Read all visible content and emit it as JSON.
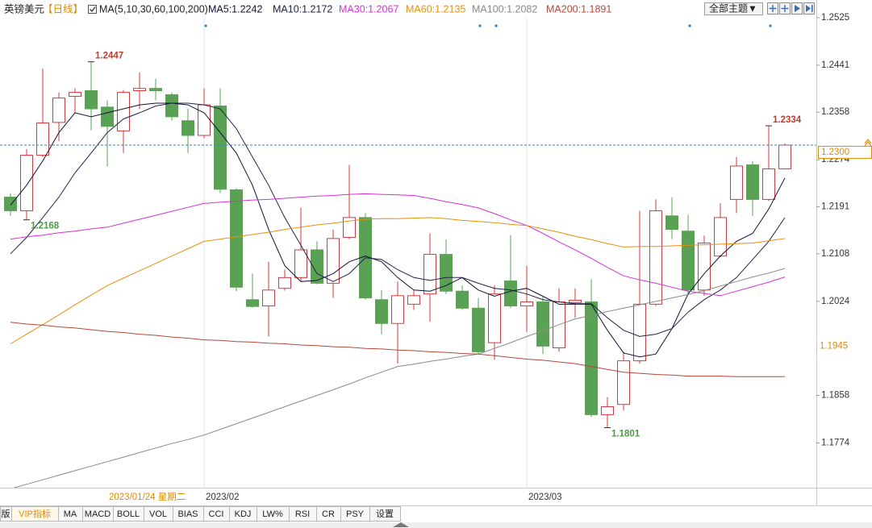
{
  "chart_data": {
    "type": "candlestick",
    "title": "英镑美元",
    "period": "【日线】",
    "indicator": "MA(5,10,30,60,100,200)",
    "categories": [
      null,
      null,
      null,
      null,
      null,
      null,
      null,
      null,
      null,
      null,
      null,
      null,
      "2023/02",
      null,
      null,
      null,
      null,
      null,
      null,
      null,
      null,
      null,
      null,
      null,
      null,
      null,
      null,
      null,
      null,
      null,
      null,
      null,
      "2023/03",
      null,
      null,
      null,
      null,
      null,
      null,
      null,
      null,
      null,
      null,
      null,
      null,
      null,
      null,
      null,
      null
    ],
    "open": [
      1.2208,
      1.2184,
      1.2282,
      1.234,
      1.2386,
      1.2396,
      1.2367,
      1.2325,
      1.2396,
      1.24,
      1.2389,
      1.2343,
      1.2317,
      1.2369,
      1.2221,
      1.2027,
      1.2016,
      1.2047,
      1.2066,
      1.2115,
      1.2056,
      1.2137,
      1.2172,
      1.2027,
      1.1985,
      1.2019,
      1.2037,
      1.2107,
      1.2042,
      1.2012,
      1.1951,
      1.206,
      1.2016,
      1.2023,
      1.1942,
      1.2022,
      1.2023,
      1.1824,
      1.1842,
      1.1919,
      1.2019,
      1.2175,
      1.2148,
      1.2044,
      1.2104,
      1.2204,
      1.2265,
      1.2204,
      1.2258
    ],
    "high": [
      1.2215,
      1.2293,
      1.2435,
      1.2393,
      1.24,
      1.2447,
      1.2379,
      1.2397,
      1.2428,
      1.2417,
      1.2393,
      1.2364,
      1.24,
      1.24,
      1.2224,
      1.2073,
      1.2094,
      1.208,
      1.2189,
      1.213,
      1.2151,
      1.2265,
      1.218,
      1.2044,
      1.2059,
      1.2044,
      1.2144,
      1.2133,
      1.2052,
      1.203,
      1.2052,
      1.2141,
      1.2087,
      1.2033,
      1.2047,
      1.2047,
      1.2063,
      1.1855,
      1.1935,
      1.2184,
      1.2204,
      1.2208,
      1.2177,
      1.214,
      1.2197,
      1.2279,
      1.2272,
      1.2334,
      1.2303
    ],
    "low": [
      1.2175,
      1.2168,
      1.2279,
      1.2307,
      1.2357,
      1.2326,
      1.2262,
      1.2286,
      1.2364,
      1.2379,
      1.2343,
      1.2286,
      1.2312,
      1.2215,
      1.2042,
      1.2013,
      1.1962,
      1.2043,
      1.2059,
      1.2054,
      1.203,
      1.2134,
      1.2027,
      1.1966,
      1.1914,
      1.2009,
      1.1988,
      1.2037,
      1.2009,
      1.1931,
      1.1921,
      1.2012,
      1.197,
      1.1931,
      1.1935,
      1.1995,
      1.182,
      1.1801,
      1.1831,
      1.1914,
      1.2016,
      1.2134,
      1.2037,
      1.2034,
      1.2102,
      1.218,
      1.2175,
      1.2201,
      1.2257
    ],
    "close": [
      1.2184,
      1.2282,
      1.2339,
      1.2383,
      1.2393,
      1.2364,
      1.2333,
      1.2393,
      1.24,
      1.2396,
      1.235,
      1.2317,
      1.2371,
      1.2222,
      1.2049,
      1.2015,
      1.2044,
      1.2066,
      1.2115,
      1.2056,
      1.2135,
      1.2172,
      1.203,
      1.1985,
      1.2034,
      1.2034,
      1.2107,
      1.2042,
      1.2012,
      1.1935,
      1.2037,
      1.2016,
      1.2023,
      1.1945,
      1.2023,
      1.2026,
      1.1824,
      1.1838,
      1.1919,
      1.2019,
      1.2184,
      1.2151,
      1.2044,
      1.2127,
      1.2172,
      1.2263,
      1.2204,
      1.2258,
      1.23
    ],
    "up_color": "#d9373b",
    "down_color": "#5aa253",
    "series": [
      {
        "name": "MA5:1.2242",
        "color": "#111133",
        "values": [
          1.2194,
          1.2229,
          1.2272,
          1.2322,
          1.2357,
          1.235,
          1.2357,
          1.2364,
          1.2371,
          1.2374,
          1.2374,
          1.2371,
          1.2357,
          1.2322,
          1.2286,
          1.2229,
          1.2151,
          1.2087,
          1.2059,
          1.2061,
          1.2073,
          1.2094,
          1.2104,
          1.2094,
          1.2066,
          1.2044,
          1.2042,
          1.2052,
          1.2066,
          1.2044,
          1.2033,
          1.2042,
          1.2047,
          1.2033,
          1.2019,
          1.2019,
          1.2019,
          1.1973,
          1.1933,
          1.1926,
          1.1931,
          1.1976,
          1.2037,
          1.2073,
          1.2104,
          1.213,
          1.2144,
          1.2187,
          1.2242
        ]
      },
      {
        "name": "MA10:1.2172",
        "color": "#22224a",
        "values": [
          1.2108,
          1.2137,
          1.2172,
          1.2208,
          1.2251,
          1.2286,
          1.2322,
          1.2346,
          1.2357,
          1.2369,
          1.2374,
          1.2374,
          1.2371,
          1.2364,
          1.2329,
          1.2279,
          1.2229,
          1.2172,
          1.2123,
          1.2073,
          1.2059,
          1.2073,
          1.2101,
          1.2098,
          1.208,
          1.2066,
          1.2061,
          1.2066,
          1.2066,
          1.2056,
          1.2047,
          1.2044,
          1.2037,
          1.2027,
          1.2023,
          1.202,
          1.202,
          1.1995,
          1.1973,
          1.1962,
          1.1966,
          1.1976,
          1.2005,
          1.2027,
          1.2044,
          1.2066,
          1.2098,
          1.213,
          1.2172
        ]
      },
      {
        "name": "MA30:1.2067",
        "color": "#d631d6",
        "values": [
          1.2134,
          1.2138,
          1.2141,
          1.2145,
          1.2148,
          1.2152,
          1.2155,
          1.2162,
          1.2169,
          1.2176,
          1.2183,
          1.219,
          1.2197,
          1.2199,
          1.2201,
          1.2203,
          1.2204,
          1.2206,
          1.2208,
          1.221,
          1.2211,
          1.2213,
          1.2214,
          1.2213,
          1.2212,
          1.2211,
          1.2206,
          1.22,
          1.2195,
          1.2189,
          1.2179,
          1.2168,
          1.2158,
          1.2144,
          1.2129,
          1.2115,
          1.21,
          1.2084,
          1.2069,
          1.2062,
          1.2056,
          1.2049,
          1.2042,
          1.2038,
          1.2034,
          1.2042,
          1.205,
          1.2058,
          1.2067
        ]
      },
      {
        "name": "MA60:1.2135",
        "color": "#e8900c",
        "values": [
          1.1949,
          1.1966,
          1.1983,
          1.2,
          1.2018,
          1.2035,
          1.2052,
          1.2065,
          1.2078,
          1.2091,
          1.2104,
          1.2117,
          1.213,
          1.2134,
          1.2138,
          1.2142,
          1.2146,
          1.2151,
          1.2155,
          1.2159,
          1.2162,
          1.2166,
          1.2169,
          1.217,
          1.217,
          1.2171,
          1.2172,
          1.217,
          1.2167,
          1.2165,
          1.2163,
          1.216,
          1.2158,
          1.2152,
          1.2146,
          1.2139,
          1.2133,
          1.2126,
          1.212,
          1.2121,
          1.2121,
          1.2122,
          1.2123,
          1.2124,
          1.2125,
          1.2126,
          1.2127,
          1.2131,
          1.2135
        ]
      },
      {
        "name": "MA100:1.2082",
        "color": "#8a8a8a",
        "values": [
          1.1693,
          1.1701,
          1.1709,
          1.1717,
          1.1725,
          1.1733,
          1.1741,
          1.1749,
          1.1757,
          1.1765,
          1.1773,
          1.178,
          1.1788,
          1.1798,
          1.1808,
          1.1818,
          1.1828,
          1.1838,
          1.1848,
          1.1858,
          1.1868,
          1.1878,
          1.1889,
          1.1899,
          1.1909,
          1.1913,
          1.1918,
          1.1922,
          1.1927,
          1.1931,
          1.1941,
          1.1951,
          1.1962,
          1.1972,
          1.1983,
          1.1993,
          1.1999,
          1.2006,
          1.2012,
          1.2018,
          1.2024,
          1.203,
          1.2036,
          1.2043,
          1.2051,
          1.2059,
          1.2067,
          1.2074,
          1.2082
        ]
      },
      {
        "name": "MA200:1.1891",
        "color": "#b5483a",
        "values": [
          1.1987,
          1.1984,
          1.1982,
          1.1979,
          1.1977,
          1.1974,
          1.1971,
          1.1969,
          1.1966,
          1.1964,
          1.1961,
          1.1959,
          1.1956,
          1.1955,
          1.1953,
          1.1952,
          1.195,
          1.1949,
          1.1947,
          1.1946,
          1.1944,
          1.1943,
          1.1941,
          1.194,
          1.1938,
          1.1937,
          1.1935,
          1.1934,
          1.1932,
          1.1931,
          1.1928,
          1.1925,
          1.1922,
          1.192,
          1.1917,
          1.1914,
          1.1909,
          1.1904,
          1.1899,
          1.1897,
          1.1895,
          1.1894,
          1.1892,
          1.1892,
          1.1892,
          1.1891,
          1.1891,
          1.1891,
          1.1891
        ]
      }
    ],
    "ylim": [
      1.1695,
      1.2549
    ],
    "yticks": [
      1.2525,
      1.2441,
      1.2358,
      1.2274,
      1.2191,
      1.2108,
      1.2024,
      1.1941,
      1.1858,
      1.1774
    ],
    "last_price": {
      "value": 1.23,
      "label": "1.2300"
    },
    "crosshair": {
      "date": "2023/01/24 星期二",
      "price": 1.1945
    }
  },
  "toolbar": {
    "theme_button": "全部主题▼"
  },
  "tabs": [
    "版",
    "VIP指标",
    "MA",
    "MACD",
    "BOLL",
    "VOL",
    "BIAS",
    "CCI",
    "KDJ",
    "LW%",
    "RSI",
    "CR",
    "PSY",
    "设置"
  ]
}
